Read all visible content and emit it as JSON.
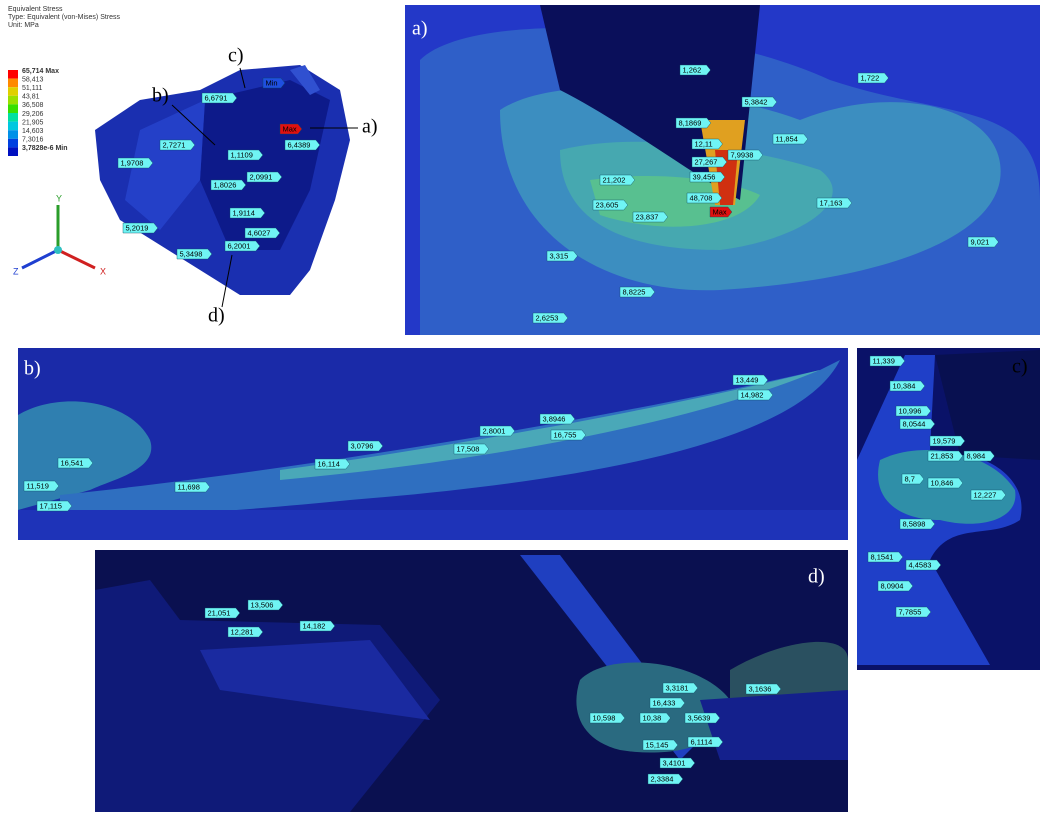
{
  "legend": {
    "title": "Equivalent Stress",
    "type": "Type: Equivalent (von-Mises) Stress",
    "unit": "Unit: MPa",
    "levels": [
      "65,714 Max",
      "58,413",
      "51,111",
      "43,81",
      "36,508",
      "29,206",
      "21,905",
      "14,603",
      "7,3016",
      "3,7828e-6 Min"
    ]
  },
  "triad": {
    "y": "Y",
    "z": "Z",
    "x": "X"
  },
  "overview": {
    "callouts": [
      "c)",
      "b)",
      "a)",
      "d)"
    ],
    "probes": [
      "Min",
      "Max",
      "6,6791",
      "2,7271",
      "1,9708",
      "1,1109",
      "6,4389",
      "1,8026",
      "2,0991",
      "1,9114",
      "4,6027",
      "5,2019",
      "6,2001",
      "5,3498"
    ]
  },
  "panels": [
    {
      "label": "a)",
      "probes": [
        "1,262",
        "1,722",
        "5,3842",
        "8,1869",
        "12,11",
        "7,9938",
        "11,854",
        "27,267",
        "39,456",
        "21,202",
        "48,708",
        "23,605",
        "23,837",
        "Max",
        "17,163",
        "9,021",
        "3,315",
        "8,8225",
        "2,6253"
      ]
    },
    {
      "label": "b)",
      "probes": [
        "13,449",
        "14,982",
        "2,8001",
        "3,8946",
        "3,0796",
        "17,508",
        "16,755",
        "16,114",
        "16,541",
        "11,698",
        "11,519",
        "17,115"
      ]
    },
    {
      "label": "c)",
      "probes": [
        "11,339",
        "10,384",
        "10,996",
        "8,0544",
        "19,579",
        "21,853",
        "8,984",
        "8,7",
        "10,846",
        "12,227",
        "8,5898",
        "8,1541",
        "4,4583",
        "8,0904",
        "7,7855"
      ]
    },
    {
      "label": "d)",
      "probes": [
        "21,051",
        "13,506",
        "12,281",
        "14,182",
        "3,3181",
        "3,1636",
        "16,433",
        "10,598",
        "10,38",
        "3,5639",
        "15,145",
        "6,1114",
        "3,4101",
        "2,3384"
      ]
    }
  ]
}
